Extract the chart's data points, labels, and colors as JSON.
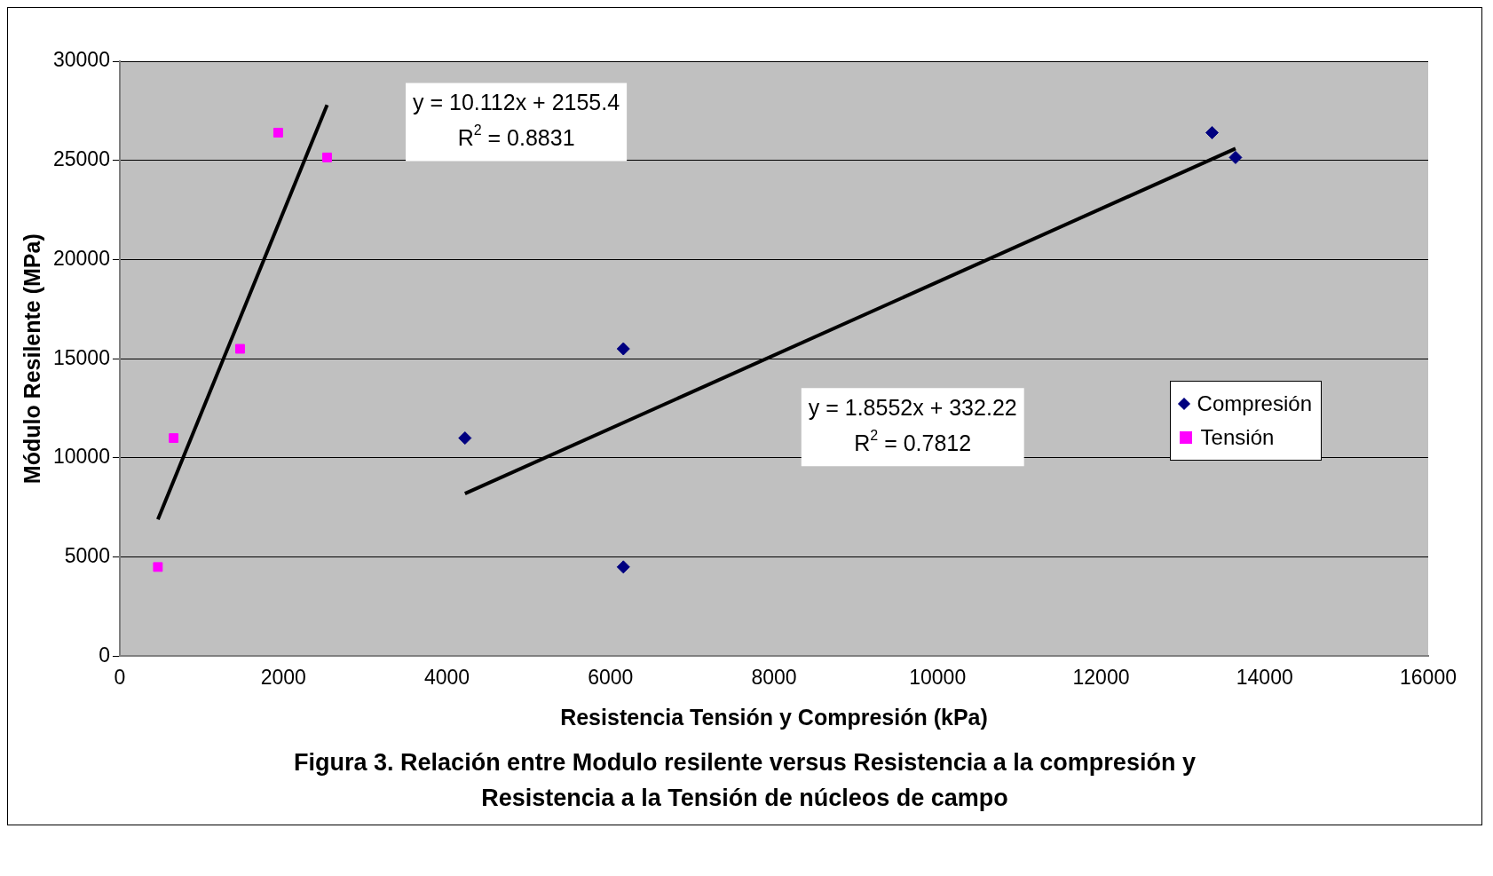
{
  "chart_data": {
    "type": "scatter",
    "xlabel": "Resistencia Tensión y Compresión (kPa)",
    "ylabel": "Módulo Resilente (MPa)",
    "xlim": [
      0,
      16000
    ],
    "xticks": [
      0,
      2000,
      4000,
      6000,
      8000,
      10000,
      12000,
      14000,
      16000
    ],
    "ylim": [
      0,
      30000
    ],
    "yticks": [
      0,
      5000,
      10000,
      15000,
      20000,
      25000,
      30000
    ],
    "grid": "y",
    "legend": "right",
    "series": [
      {
        "name": "Compresión",
        "type": "scatter",
        "marker": "diamond",
        "color": "#000080",
        "x": [
          4221,
          6158,
          6158,
          13357,
          13644
        ],
        "values": [
          11000,
          15500,
          4500,
          26400,
          25150
        ]
      },
      {
        "name": "Tensión",
        "type": "scatter",
        "marker": "square",
        "color": "#ff00ff",
        "x": [
          466,
          658,
          1471,
          1937,
          2535
        ],
        "values": [
          4500,
          11000,
          15500,
          26400,
          25150
        ]
      },
      {
        "type": "line",
        "marker": "none",
        "color": "#000000",
        "x": [
          466,
          2535
        ],
        "values": [
          6900,
          27800
        ]
      },
      {
        "type": "line",
        "marker": "none",
        "color": "#000000",
        "x": [
          4221,
          13644
        ],
        "values": [
          8200,
          25600
        ]
      }
    ],
    "annotations": [
      "y = 10.112x + 2155.4\nR$^{2}$ = 0.8831",
      "y = 1.8552x + 332.22\nR$^{2}$ = 0.7812",
      "Figura 3. Relación entre Modulo resilente versus Resistencia a la compresión y Resistencia a la Tensión de núcleos de campo"
    ]
  }
}
